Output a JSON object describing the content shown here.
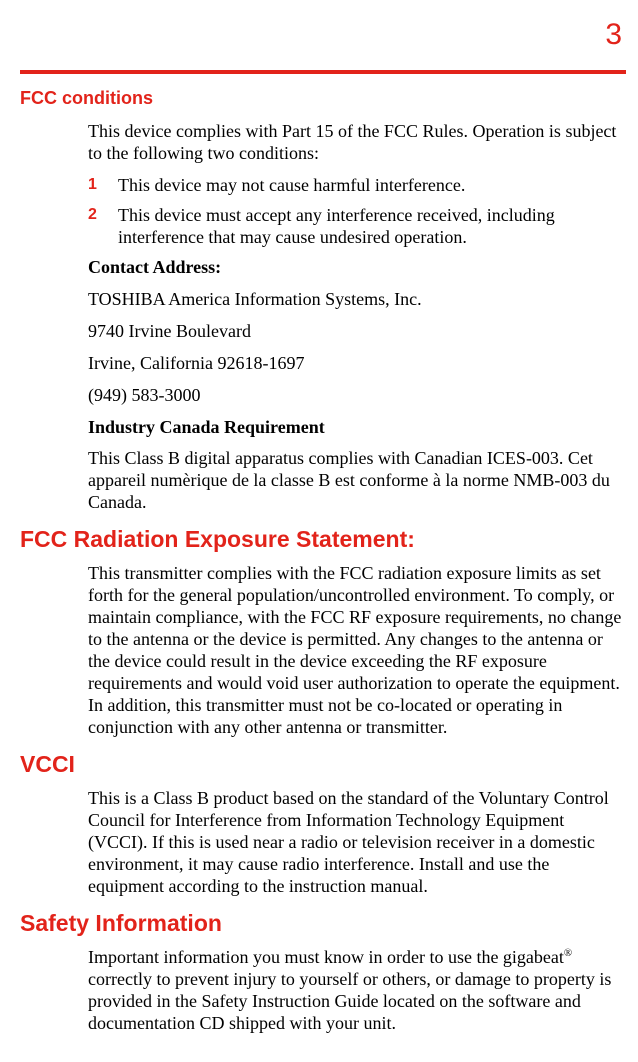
{
  "page": {
    "number": "3"
  },
  "colors": {
    "accent": "#e2231a",
    "text": "#000000",
    "background": "#ffffff"
  },
  "typography": {
    "heading_family": "Arial",
    "body_family": "Times New Roman",
    "h1_size_pt": 14,
    "h2_size_pt": 18,
    "body_size_pt": 13
  },
  "sections": {
    "fcc_conditions": {
      "title": "FCC conditions",
      "intro": "This device complies with Part 15 of the FCC Rules. Operation is subject to the following two conditions:",
      "items": [
        {
          "num": "1",
          "text": "This device may not cause harmful interference."
        },
        {
          "num": "2",
          "text": "This device must accept any interference received, including interference that may cause undesired operation."
        }
      ],
      "contact_label": "Contact Address:",
      "contact_name": "TOSHIBA America Information Systems, Inc.",
      "contact_street": "9740 Irvine Boulevard",
      "contact_city": "Irvine, California 92618-1697",
      "contact_phone": "(949) 583-3000",
      "industry_label": "Industry Canada Requirement",
      "industry_text": "This Class B digital apparatus complies with Canadian ICES-003. Cet appareil numèrique de la classe B est conforme à la norme NMB-003 du Canada."
    },
    "fcc_radiation": {
      "title": "FCC Radiation Exposure Statement:",
      "text": "This transmitter complies with the FCC radiation exposure limits as set forth for the general population/uncontrolled environment. To comply, or maintain compliance, with the FCC RF exposure requirements, no change to the antenna or the device is permitted. Any changes to the antenna or the device could result in the device exceeding the RF exposure requirements and would void user authorization to operate the equipment. In addition, this transmitter must not be co-located or operating in conjunction with any other antenna or transmitter."
    },
    "vcci": {
      "title": "VCCI",
      "text": "This is a Class B product based on the standard of the Voluntary Control Council for Interference from Information Technology Equipment (VCCI). If this is used near a radio or television receiver in a domestic environment, it may cause radio interference. Install and use the equipment according to the instruction manual."
    },
    "safety": {
      "title": "Safety Information",
      "text_pre": "Important information you must know in order to use the gigabeat",
      "sup": "®",
      "text_post": " correctly to prevent injury to yourself or others, or damage to property is provided in the Safety Instruction Guide located on the software and documentation CD shipped with your unit."
    }
  }
}
